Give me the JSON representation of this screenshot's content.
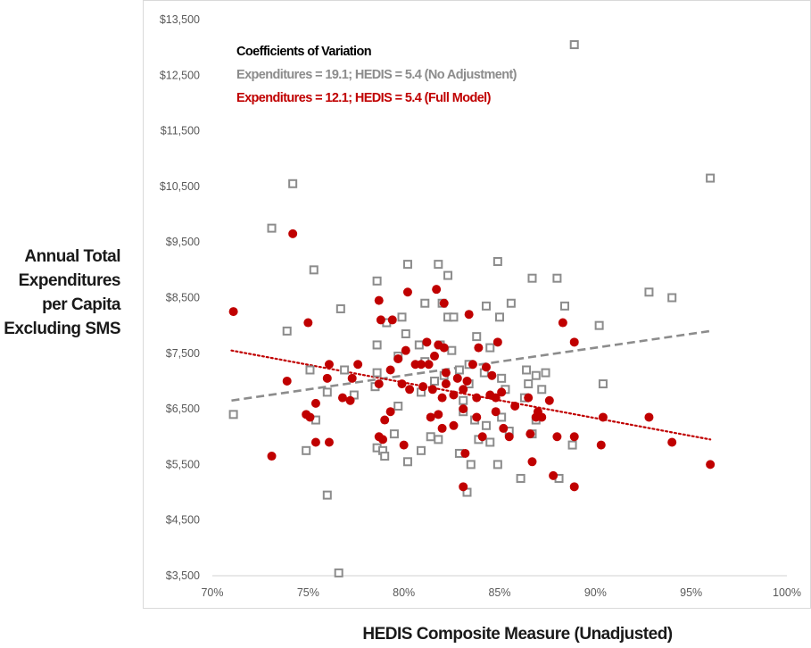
{
  "chart_data": {
    "type": "scatter",
    "xlabel": "HEDIS Composite Measure (Unadjusted)",
    "ylabel_lines": [
      "Annual Total",
      "Expenditures",
      "per Capita",
      "Excluding SMS"
    ],
    "xlim": [
      0.7,
      1.0
    ],
    "ylim": [
      3500,
      13500
    ],
    "x_ticks": [
      0.7,
      0.75,
      0.8,
      0.85,
      0.9,
      0.95,
      1.0
    ],
    "x_tick_labels": [
      "70%",
      "75%",
      "80%",
      "85%",
      "90%",
      "95%",
      "100%"
    ],
    "y_ticks": [
      3500,
      4500,
      5500,
      6500,
      7500,
      8500,
      9500,
      10500,
      11500,
      12500,
      13500
    ],
    "y_tick_labels": [
      "$3,500",
      "$4,500",
      "$5,500",
      "$6,500",
      "$7,500",
      "$8,500",
      "$9,500",
      "$10,500",
      "$11,500",
      "$12,500",
      "$13,500"
    ],
    "grid": false,
    "annotations": [
      {
        "text": "Coefficients of Variation",
        "color": "#000000"
      },
      {
        "text": "Expenditures = 19.1; HEDIS = 5.4 (No Adjustment)",
        "color": "#8c8c8c"
      },
      {
        "text": "Expenditures = 12.1; HEDIS = 5.4 (Full Model)",
        "color": "#c00000"
      }
    ],
    "series": [
      {
        "marker": "hollow-square",
        "color": "#8c8c8c",
        "trendline": {
          "style": "dashed",
          "from": [
            0.71,
            6650
          ],
          "to": [
            0.96,
            7900
          ]
        },
        "points": [
          [
            0.889,
            13050
          ],
          [
            0.96,
            10650
          ],
          [
            0.742,
            10550
          ],
          [
            0.731,
            9750
          ],
          [
            0.753,
            9000
          ],
          [
            0.739,
            7900
          ],
          [
            0.767,
            8300
          ],
          [
            0.786,
            8800
          ],
          [
            0.802,
            9100
          ],
          [
            0.818,
            9100
          ],
          [
            0.823,
            8900
          ],
          [
            0.849,
            9150
          ],
          [
            0.867,
            8850
          ],
          [
            0.88,
            8850
          ],
          [
            0.928,
            8600
          ],
          [
            0.94,
            8500
          ],
          [
            0.856,
            8400
          ],
          [
            0.843,
            8350
          ],
          [
            0.884,
            8350
          ],
          [
            0.811,
            8400
          ],
          [
            0.82,
            8400
          ],
          [
            0.85,
            8150
          ],
          [
            0.823,
            8150
          ],
          [
            0.826,
            8150
          ],
          [
            0.799,
            8150
          ],
          [
            0.791,
            8050
          ],
          [
            0.902,
            8000
          ],
          [
            0.786,
            7650
          ],
          [
            0.801,
            7850
          ],
          [
            0.808,
            7650
          ],
          [
            0.819,
            7650
          ],
          [
            0.838,
            7800
          ],
          [
            0.845,
            7600
          ],
          [
            0.825,
            7550
          ],
          [
            0.797,
            7450
          ],
          [
            0.811,
            7350
          ],
          [
            0.834,
            7300
          ],
          [
            0.829,
            7200
          ],
          [
            0.842,
            7150
          ],
          [
            0.851,
            7050
          ],
          [
            0.864,
            7200
          ],
          [
            0.869,
            7100
          ],
          [
            0.874,
            7150
          ],
          [
            0.751,
            7200
          ],
          [
            0.786,
            7150
          ],
          [
            0.769,
            7200
          ],
          [
            0.821,
            7100
          ],
          [
            0.816,
            7000
          ],
          [
            0.834,
            6950
          ],
          [
            0.785,
            6900
          ],
          [
            0.853,
            6850
          ],
          [
            0.865,
            6950
          ],
          [
            0.872,
            6850
          ],
          [
            0.904,
            6950
          ],
          [
            0.863,
            6700
          ],
          [
            0.76,
            6800
          ],
          [
            0.774,
            6750
          ],
          [
            0.809,
            6800
          ],
          [
            0.831,
            6650
          ],
          [
            0.797,
            6550
          ],
          [
            0.711,
            6400
          ],
          [
            0.754,
            6300
          ],
          [
            0.851,
            6350
          ],
          [
            0.831,
            6450
          ],
          [
            0.837,
            6300
          ],
          [
            0.869,
            6300
          ],
          [
            0.843,
            6200
          ],
          [
            0.867,
            6050
          ],
          [
            0.795,
            6050
          ],
          [
            0.814,
            6000
          ],
          [
            0.818,
            5950
          ],
          [
            0.839,
            5950
          ],
          [
            0.845,
            5900
          ],
          [
            0.855,
            6100
          ],
          [
            0.749,
            5750
          ],
          [
            0.786,
            5800
          ],
          [
            0.789,
            5750
          ],
          [
            0.79,
            5650
          ],
          [
            0.802,
            5550
          ],
          [
            0.809,
            5750
          ],
          [
            0.829,
            5700
          ],
          [
            0.835,
            5500
          ],
          [
            0.849,
            5500
          ],
          [
            0.861,
            5250
          ],
          [
            0.881,
            5250
          ],
          [
            0.888,
            5850
          ],
          [
            0.833,
            5000
          ],
          [
            0.76,
            4950
          ],
          [
            0.766,
            3550
          ]
        ]
      },
      {
        "marker": "filled-circle",
        "color": "#c00000",
        "trendline": {
          "style": "dotted",
          "from": [
            0.71,
            7550
          ],
          "to": [
            0.96,
            5950
          ]
        },
        "points": [
          [
            0.742,
            9650
          ],
          [
            0.711,
            8250
          ],
          [
            0.75,
            8050
          ],
          [
            0.787,
            8450
          ],
          [
            0.794,
            8100
          ],
          [
            0.788,
            8100
          ],
          [
            0.802,
            8600
          ],
          [
            0.817,
            8650
          ],
          [
            0.821,
            8400
          ],
          [
            0.834,
            8200
          ],
          [
            0.883,
            8050
          ],
          [
            0.889,
            7700
          ],
          [
            0.849,
            7700
          ],
          [
            0.839,
            7600
          ],
          [
            0.818,
            7650
          ],
          [
            0.821,
            7600
          ],
          [
            0.812,
            7700
          ],
          [
            0.809,
            7300
          ],
          [
            0.776,
            7300
          ],
          [
            0.761,
            7300
          ],
          [
            0.739,
            7000
          ],
          [
            0.76,
            7050
          ],
          [
            0.773,
            7050
          ],
          [
            0.787,
            6950
          ],
          [
            0.793,
            7200
          ],
          [
            0.797,
            7400
          ],
          [
            0.801,
            7550
          ],
          [
            0.806,
            7300
          ],
          [
            0.813,
            7300
          ],
          [
            0.816,
            7450
          ],
          [
            0.822,
            7150
          ],
          [
            0.828,
            7050
          ],
          [
            0.833,
            7000
          ],
          [
            0.836,
            7300
          ],
          [
            0.843,
            7250
          ],
          [
            0.846,
            7100
          ],
          [
            0.822,
            6950
          ],
          [
            0.81,
            6900
          ],
          [
            0.803,
            6850
          ],
          [
            0.799,
            6950
          ],
          [
            0.815,
            6850
          ],
          [
            0.82,
            6700
          ],
          [
            0.826,
            6750
          ],
          [
            0.831,
            6850
          ],
          [
            0.838,
            6700
          ],
          [
            0.845,
            6750
          ],
          [
            0.851,
            6800
          ],
          [
            0.848,
            6700
          ],
          [
            0.858,
            6550
          ],
          [
            0.865,
            6700
          ],
          [
            0.87,
            6450
          ],
          [
            0.876,
            6650
          ],
          [
            0.831,
            6500
          ],
          [
            0.818,
            6400
          ],
          [
            0.793,
            6450
          ],
          [
            0.79,
            6300
          ],
          [
            0.768,
            6700
          ],
          [
            0.772,
            6650
          ],
          [
            0.754,
            6600
          ],
          [
            0.749,
            6400
          ],
          [
            0.751,
            6350
          ],
          [
            0.814,
            6350
          ],
          [
            0.82,
            6150
          ],
          [
            0.826,
            6200
          ],
          [
            0.838,
            6350
          ],
          [
            0.848,
            6450
          ],
          [
            0.852,
            6150
          ],
          [
            0.866,
            6050
          ],
          [
            0.872,
            6350
          ],
          [
            0.855,
            6000
          ],
          [
            0.841,
            6000
          ],
          [
            0.869,
            6350
          ],
          [
            0.88,
            6000
          ],
          [
            0.889,
            6000
          ],
          [
            0.903,
            5850
          ],
          [
            0.904,
            6350
          ],
          [
            0.928,
            6350
          ],
          [
            0.94,
            5900
          ],
          [
            0.96,
            5500
          ],
          [
            0.754,
            5900
          ],
          [
            0.761,
            5900
          ],
          [
            0.787,
            6000
          ],
          [
            0.789,
            5950
          ],
          [
            0.8,
            5850
          ],
          [
            0.832,
            5700
          ],
          [
            0.867,
            5550
          ],
          [
            0.878,
            5300
          ],
          [
            0.889,
            5100
          ],
          [
            0.831,
            5100
          ],
          [
            0.731,
            5650
          ]
        ]
      }
    ]
  }
}
